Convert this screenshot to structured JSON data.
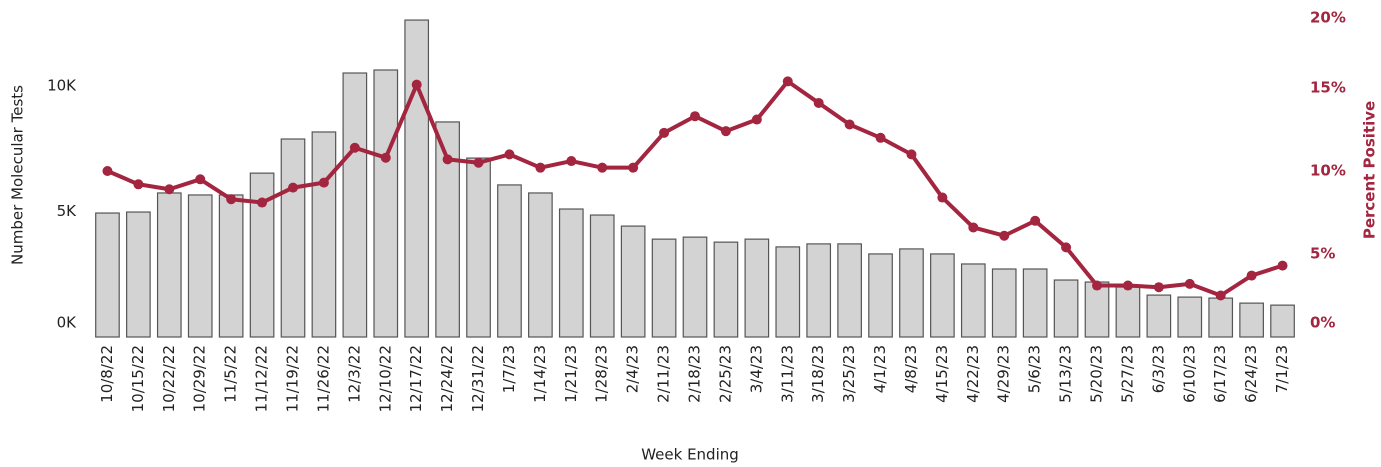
{
  "chart_data": {
    "type": "combo",
    "x_label": "Week Ending",
    "y_label": "Number Molecular Tests",
    "y2_label": "Percent Positive",
    "categories": [
      "10/8/22",
      "10/15/22",
      "10/22/22",
      "10/29/22",
      "11/5/22",
      "11/12/22",
      "11/19/22",
      "11/26/22",
      "12/3/22",
      "12/10/22",
      "12/17/22",
      "12/24/22",
      "12/31/22",
      "1/7/23",
      "1/14/23",
      "1/21/23",
      "1/28/23",
      "2/4/23",
      "2/11/23",
      "2/18/23",
      "2/25/23",
      "3/4/23",
      "3/11/23",
      "3/18/23",
      "3/25/23",
      "4/1/23",
      "4/8/23",
      "4/15/23",
      "4/22/23",
      "4/29/23",
      "5/6/23",
      "5/13/23",
      "5/20/23",
      "5/27/23",
      "6/3/23",
      "6/10/23",
      "6/17/23",
      "6/24/23",
      "7/1/23"
    ],
    "series": [
      {
        "type": "bar",
        "color": "#d3d3d3",
        "values": [
          4940,
          4980,
          5740,
          5660,
          5660,
          6530,
          7890,
          8170,
          10520,
          10640,
          12630,
          8570,
          7130,
          6060,
          5740,
          5100,
          4860,
          4420,
          3900,
          3980,
          3780,
          3900,
          3590,
          3710,
          3710,
          3310,
          3510,
          3310,
          2910,
          2710,
          2710,
          2270,
          2190,
          1990,
          1670,
          1590,
          1550,
          1350,
          1270
        ]
      },
      {
        "type": "line",
        "axis": "y2",
        "color": "#a3253f",
        "values": [
          10.0,
          9.2,
          8.9,
          9.5,
          8.3,
          8.1,
          9.0,
          9.3,
          11.4,
          10.8,
          15.2,
          10.7,
          10.5,
          11.0,
          10.2,
          10.6,
          10.2,
          10.2,
          12.3,
          13.3,
          12.4,
          13.1,
          15.4,
          14.1,
          12.8,
          12.0,
          11.0,
          8.4,
          6.6,
          6.1,
          7.0,
          5.4,
          3.1,
          3.1,
          3.0,
          3.2,
          2.5,
          3.7,
          4.3
        ]
      }
    ],
    "ylim": [
      0,
      13230
    ],
    "yticks": [
      {
        "value": 0,
        "label": "0K"
      },
      {
        "value": 5000,
        "label": "5K"
      },
      {
        "value": 10000,
        "label": "10K"
      }
    ],
    "y2lim": [
      0,
      20
    ],
    "y2ticks": [
      {
        "value": 0,
        "label": "0%"
      },
      {
        "value": 5,
        "label": "5%"
      },
      {
        "value": 10,
        "label": "10%"
      },
      {
        "value": 15,
        "label": "15%"
      },
      {
        "value": 20,
        "label": "20%"
      }
    ],
    "y2_color": "#a3253f",
    "grid": false
  }
}
